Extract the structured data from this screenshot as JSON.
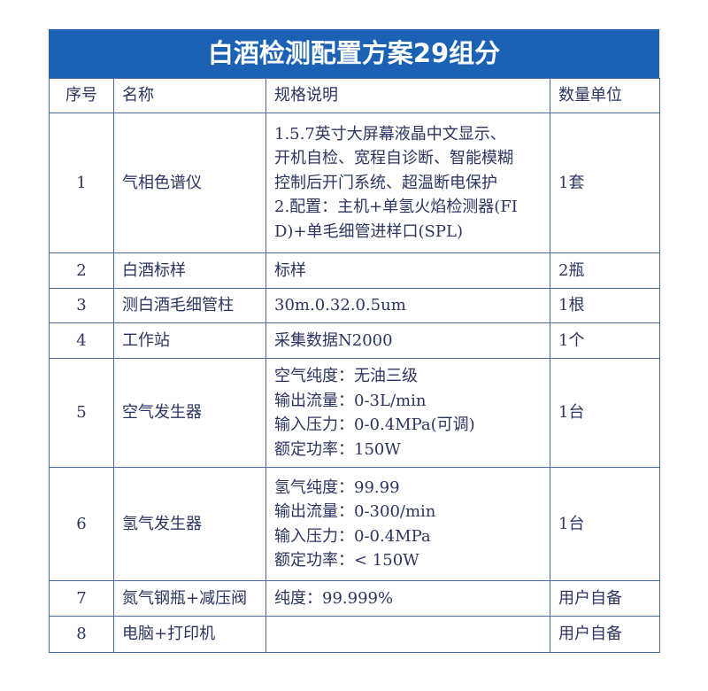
{
  "title": "白酒检测配置方案29组分",
  "headers": [
    "序号",
    "名称",
    "规格说明",
    "数量单位"
  ],
  "rows": [
    {
      "no": "1",
      "name": "气相色谱仪",
      "spec": [
        "1.5.7英寸大屏幕液晶中文显示、",
        "开机自检、宽程自诊断、智能模糊",
        "控制后开门系统、超温断电保护",
        "2.配置：主机+单氢火焰检测器(FI",
        "D)+单毛细管进样口(SPL)"
      ],
      "qty": "1套"
    },
    {
      "no": "2",
      "name": "白酒标样",
      "spec": [
        "标样"
      ],
      "qty": "2瓶"
    },
    {
      "no": "3",
      "name": "测白酒毛细管柱",
      "spec": [
        "30m.0.32.0.5um"
      ],
      "qty": "1根"
    },
    {
      "no": "4",
      "name": "工作站",
      "spec": [
        "采集数据N2000"
      ],
      "qty": "1个"
    },
    {
      "no": "5",
      "name": "空气发生器",
      "spec": [
        "空气纯度：无油三级",
        "输出流量：0-3L/min",
        "输入压力：0-0.4MPa(可调)",
        "额定功率：150W"
      ],
      "qty": "1台"
    },
    {
      "no": "6",
      "name": "氢气发生器",
      "spec": [
        "氢气纯度：99.99",
        "输出流量：0-300/min",
        "输入压力：0-0.4MPa",
        "额定功率：< 150W"
      ],
      "qty": "1台"
    },
    {
      "no": "7",
      "name": "氮气钢瓶+减压阀",
      "spec": [
        "纯度：99.999%"
      ],
      "qty": "用户自备"
    },
    {
      "no": "8",
      "name": "电脑+打印机",
      "spec": [],
      "qty": "用户自备"
    }
  ],
  "colors": {
    "title_bg": "#1b62b4",
    "border": "#4a6aa0",
    "text": "#2b3560"
  }
}
